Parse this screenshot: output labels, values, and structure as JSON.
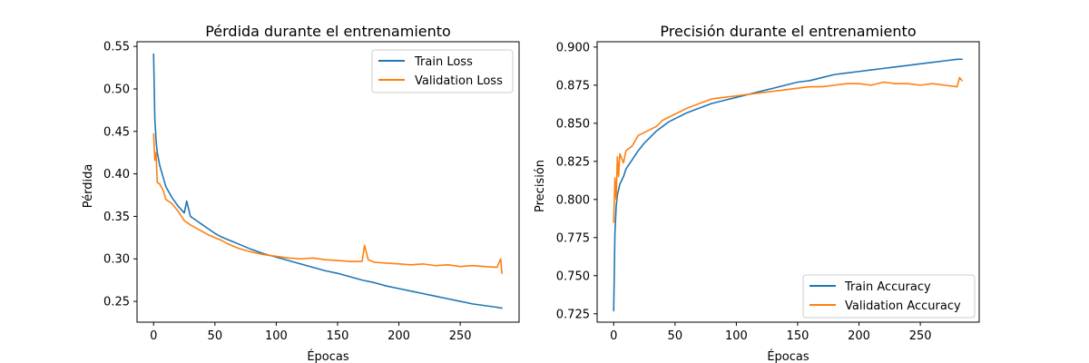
{
  "colors": {
    "train": "#1f77b4",
    "validation": "#ff7f0e"
  },
  "chart_data": [
    {
      "type": "line",
      "title": "Pérdida durante el entrenamiento",
      "xlabel": "Épocas",
      "ylabel": "Pérdida",
      "xlim": [
        -13.5,
        298
      ],
      "ylim": [
        0.2255,
        0.5555
      ],
      "xticks": [
        0,
        50,
        100,
        150,
        200,
        250
      ],
      "xtick_labels": [
        "0",
        "50",
        "100",
        "150",
        "200",
        "250"
      ],
      "yticks": [
        0.25,
        0.3,
        0.35,
        0.4,
        0.45,
        0.5,
        0.55
      ],
      "ytick_labels": [
        "0.25",
        "0.30",
        "0.35",
        "0.40",
        "0.45",
        "0.50",
        "0.55"
      ],
      "legend_position": "top-right",
      "grid": false,
      "series": [
        {
          "name": "Train Loss",
          "color": "#1f77b4",
          "x": [
            0,
            1,
            2,
            3,
            5,
            8,
            10,
            15,
            20,
            25,
            27,
            30,
            35,
            40,
            45,
            50,
            55,
            60,
            65,
            70,
            80,
            90,
            100,
            110,
            120,
            130,
            140,
            150,
            160,
            170,
            180,
            190,
            200,
            210,
            220,
            230,
            240,
            250,
            260,
            270,
            280,
            284
          ],
          "values": [
            0.541,
            0.465,
            0.44,
            0.425,
            0.41,
            0.395,
            0.385,
            0.372,
            0.362,
            0.354,
            0.368,
            0.35,
            0.345,
            0.34,
            0.335,
            0.33,
            0.326,
            0.323,
            0.32,
            0.317,
            0.311,
            0.306,
            0.302,
            0.298,
            0.294,
            0.29,
            0.286,
            0.283,
            0.279,
            0.275,
            0.272,
            0.268,
            0.265,
            0.262,
            0.259,
            0.256,
            0.253,
            0.25,
            0.247,
            0.245,
            0.243,
            0.242
          ]
        },
        {
          "name": "Validation Loss",
          "color": "#ff7f0e",
          "x": [
            0,
            1,
            2,
            3,
            5,
            8,
            10,
            15,
            20,
            25,
            30,
            35,
            40,
            45,
            50,
            55,
            60,
            65,
            70,
            80,
            90,
            100,
            110,
            120,
            130,
            140,
            150,
            160,
            170,
            172,
            175,
            180,
            190,
            200,
            210,
            220,
            230,
            240,
            250,
            260,
            270,
            280,
            283,
            284
          ],
          "values": [
            0.447,
            0.416,
            0.425,
            0.39,
            0.388,
            0.38,
            0.37,
            0.365,
            0.356,
            0.345,
            0.34,
            0.336,
            0.332,
            0.328,
            0.325,
            0.322,
            0.318,
            0.315,
            0.312,
            0.308,
            0.305,
            0.303,
            0.301,
            0.3,
            0.301,
            0.299,
            0.298,
            0.297,
            0.297,
            0.316,
            0.299,
            0.296,
            0.295,
            0.294,
            0.293,
            0.294,
            0.292,
            0.293,
            0.291,
            0.292,
            0.291,
            0.29,
            0.3,
            0.283
          ]
        }
      ]
    },
    {
      "type": "line",
      "title": "Precisión durante el entrenamiento",
      "xlabel": "Épocas",
      "ylabel": "Precisión",
      "xlim": [
        -13.5,
        298
      ],
      "ylim": [
        0.7195,
        0.9035
      ],
      "xticks": [
        0,
        50,
        100,
        150,
        200,
        250
      ],
      "xtick_labels": [
        "0",
        "50",
        "100",
        "150",
        "200",
        "250"
      ],
      "yticks": [
        0.725,
        0.75,
        0.775,
        0.8,
        0.825,
        0.85,
        0.875,
        0.9
      ],
      "ytick_labels": [
        "0.725",
        "0.750",
        "0.775",
        "0.800",
        "0.825",
        "0.850",
        "0.875",
        "0.900"
      ],
      "legend_position": "bottom-right",
      "grid": false,
      "series": [
        {
          "name": "Train Accuracy",
          "color": "#1f77b4",
          "x": [
            0,
            1,
            2,
            3,
            5,
            8,
            10,
            15,
            20,
            25,
            30,
            35,
            40,
            45,
            50,
            60,
            70,
            80,
            90,
            100,
            110,
            120,
            130,
            140,
            150,
            160,
            170,
            180,
            190,
            200,
            210,
            220,
            230,
            240,
            250,
            260,
            270,
            280,
            284
          ],
          "values": [
            0.727,
            0.778,
            0.795,
            0.803,
            0.81,
            0.815,
            0.82,
            0.826,
            0.832,
            0.837,
            0.841,
            0.845,
            0.848,
            0.851,
            0.853,
            0.857,
            0.86,
            0.863,
            0.865,
            0.867,
            0.869,
            0.871,
            0.873,
            0.875,
            0.877,
            0.878,
            0.88,
            0.882,
            0.883,
            0.884,
            0.885,
            0.886,
            0.887,
            0.888,
            0.889,
            0.89,
            0.891,
            0.892,
            0.892
          ]
        },
        {
          "name": "Validation Accuracy",
          "color": "#ff7f0e",
          "x": [
            0,
            1,
            2,
            3,
            4,
            5,
            8,
            10,
            15,
            20,
            25,
            30,
            35,
            40,
            45,
            50,
            60,
            70,
            80,
            90,
            100,
            110,
            120,
            130,
            140,
            150,
            160,
            170,
            180,
            190,
            200,
            210,
            220,
            230,
            240,
            250,
            260,
            270,
            280,
            282,
            284
          ],
          "values": [
            0.785,
            0.814,
            0.8,
            0.828,
            0.815,
            0.83,
            0.824,
            0.832,
            0.835,
            0.842,
            0.844,
            0.846,
            0.848,
            0.852,
            0.854,
            0.856,
            0.86,
            0.863,
            0.866,
            0.867,
            0.868,
            0.869,
            0.87,
            0.871,
            0.872,
            0.873,
            0.874,
            0.874,
            0.875,
            0.876,
            0.876,
            0.875,
            0.877,
            0.876,
            0.876,
            0.875,
            0.876,
            0.875,
            0.874,
            0.88,
            0.878
          ]
        }
      ]
    }
  ]
}
